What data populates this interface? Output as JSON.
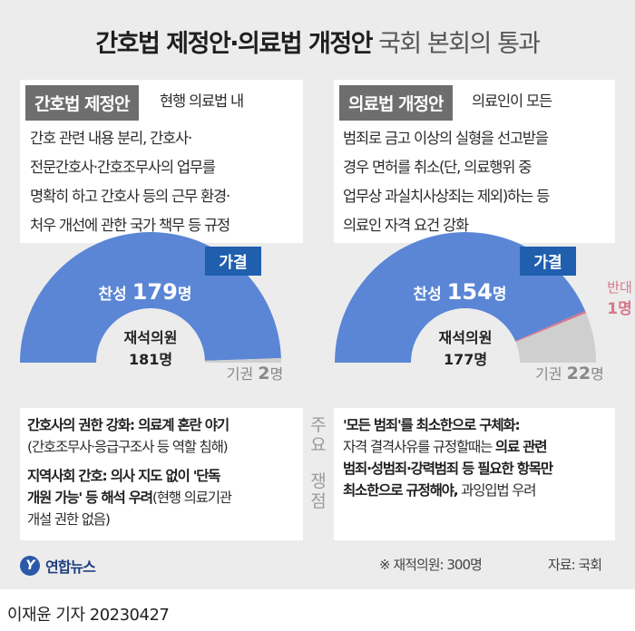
{
  "title": {
    "bold": "간호법 제정안·의료법 개정안",
    "light": "국회 본회의 통과"
  },
  "colors": {
    "yes": "#5b86d6",
    "no": "#d9778a",
    "abstain": "#cfcfcf",
    "passed": "#1f5fae",
    "tag": "#6e6e6e"
  },
  "left": {
    "tag": "간호법 제정안",
    "desc": [
      "현행 의료법 내",
      "간호 관련 내용 분리, 간호사·",
      "전문간호사·간호조무사의 업무를",
      "명확히 하고 간호사 등의 근무 환경·",
      "처우 개선에 관한 국가 책무 등 규정"
    ],
    "passed": "가결",
    "present_label": "재석의원",
    "present_value": "181명",
    "yes_label": "찬성",
    "yes_value": "179",
    "yes_unit": "명",
    "abstain_label": "기권",
    "abstain_value": "2",
    "abstain_unit": "명"
  },
  "right": {
    "tag": "의료법 개정안",
    "desc": [
      "의료인이 모든",
      "범죄로 금고 이상의 실형을 선고받을",
      "경우 면허를 취소(단, 의료행위 중",
      "업무상 과실치사상죄는 제외)하는 등",
      "의료인 자격 요건 강화"
    ],
    "passed": "가결",
    "present_label": "재석의원",
    "present_value": "177명",
    "yes_label": "찬성",
    "yes_value": "154",
    "yes_unit": "명",
    "no_label": "반대",
    "no_value": "1명",
    "abstain_label": "기권",
    "abstain_value": "22",
    "abstain_unit": "명"
  },
  "issues": {
    "label": [
      "주",
      "요",
      "",
      "쟁",
      "점"
    ],
    "left": [
      {
        "bold": "간호사의 권한 강화: 의료계 혼란 야기",
        "text": ""
      },
      {
        "bold": "",
        "text": "(간호조무사·응급구조사 등 역할 침해)"
      },
      {
        "bold": "지역사회 간호: 의사 지도 없이 '단독",
        "text": ""
      },
      {
        "bold": "개원 가능' 등 해석 우려",
        "text": "(현행 의료기관"
      },
      {
        "bold": "",
        "text": "개설 권한 없음)"
      }
    ],
    "right": [
      {
        "bold": "'모든 범죄'를 최소한으로 구체화:",
        "text": ""
      },
      {
        "bold": "",
        "text": "자격 결격사유를 규정할때는 ",
        "bold2": "의료 관련"
      },
      {
        "bold": "범죄·성범죄·강력범죄 등 필요한 항목만",
        "text": ""
      },
      {
        "bold": "최소한으로 규정해야,",
        "text": " 과잉입법 우려"
      }
    ]
  },
  "footer": {
    "note": "※ 재적의원: 300명",
    "source": "자료: 국회",
    "logo": "연합뉴스",
    "logo_mark": "Y"
  },
  "byline": "이재윤 기자  20230427",
  "chart_data": [
    {
      "type": "pie",
      "title": "간호법 제정안",
      "categories": [
        "찬성",
        "반대",
        "기권"
      ],
      "values": [
        179,
        0,
        2
      ]
    },
    {
      "type": "pie",
      "title": "의료법 개정안",
      "categories": [
        "찬성",
        "반대",
        "기권"
      ],
      "values": [
        154,
        1,
        22
      ]
    }
  ]
}
